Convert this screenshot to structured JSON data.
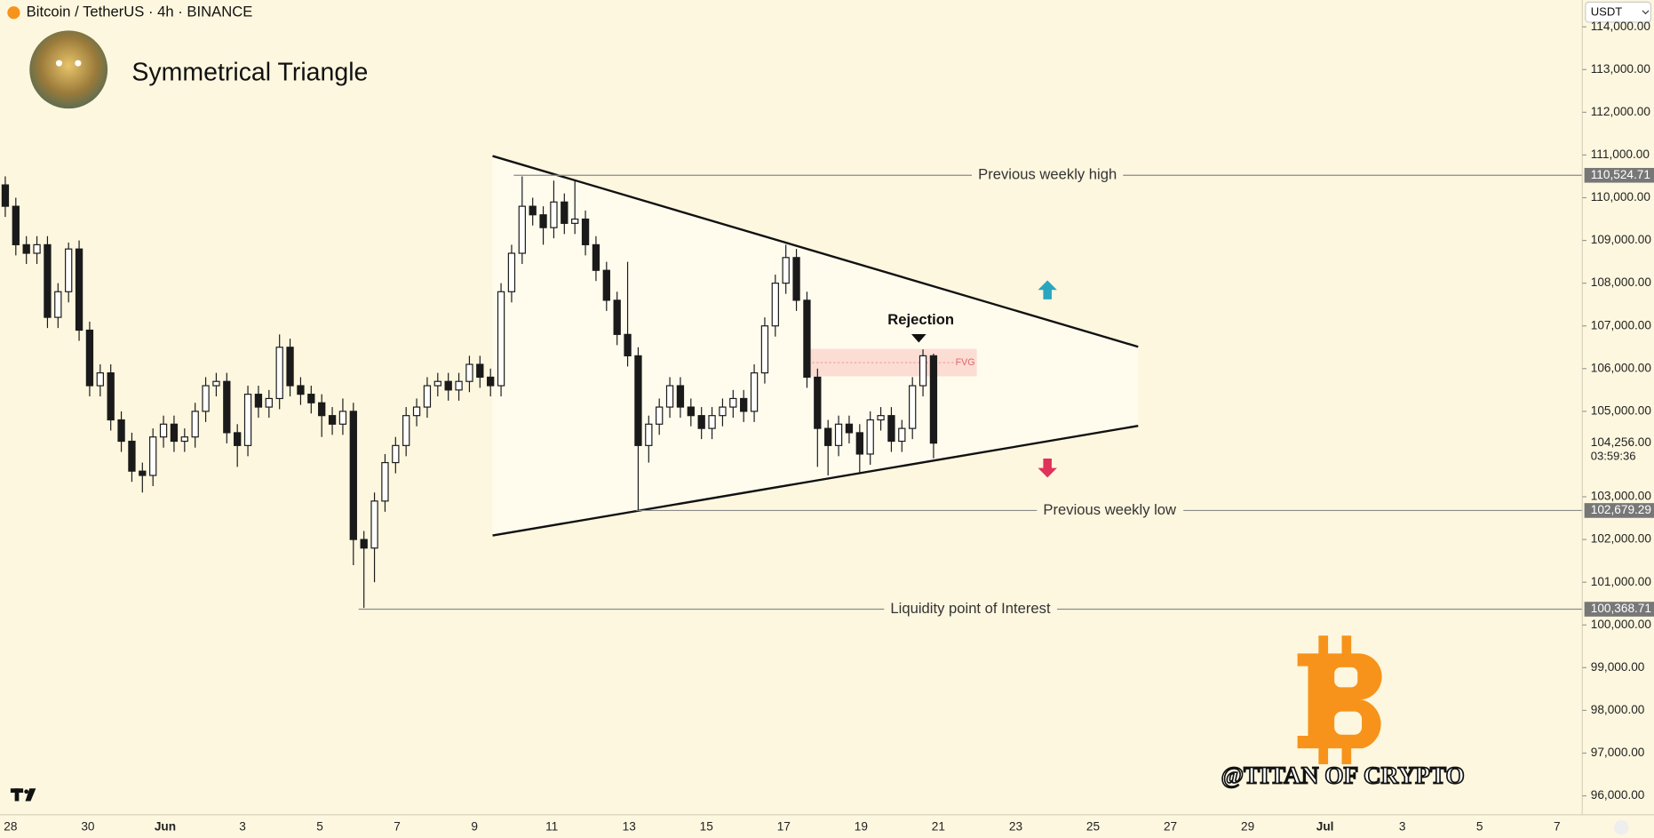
{
  "header": {
    "symbol": "Bitcoin / TetherUS · 4h · BINANCE",
    "title": "Symmetrical Triangle",
    "currency": "USDT"
  },
  "chart_data": {
    "type": "candlestick",
    "open": [
      110300,
      109800,
      108900,
      108700,
      108900,
      107200,
      107800,
      108800,
      106900,
      105600,
      105900,
      104800,
      104300,
      103600,
      103500,
      104400,
      104700,
      104300,
      104400,
      105000,
      105600,
      105700,
      104500,
      104200,
      105400,
      105100,
      105300,
      106500,
      105600,
      105400,
      105200,
      104900,
      104700,
      105000,
      102000,
      101800,
      102900,
      103800,
      104200,
      104900,
      105100,
      105600,
      105700,
      105500,
      105700,
      106100,
      105800,
      105600,
      107800,
      108700,
      109800,
      109600,
      109300,
      109900,
      109400,
      109500,
      108900,
      108300,
      107600,
      106800,
      106300,
      104200,
      104700,
      105100,
      105600,
      105100,
      104900,
      104600,
      104900,
      105100,
      105300,
      105000,
      105900,
      107000,
      108000,
      108600,
      107600,
      105800,
      104600,
      104200,
      104700,
      104500,
      104000,
      104800,
      104900,
      104300,
      104600,
      105600,
      106300
    ],
    "high": [
      110500,
      110000,
      109100,
      109100,
      109100,
      108000,
      108950,
      109000,
      107100,
      106100,
      106100,
      105000,
      104500,
      103800,
      104600,
      104900,
      104900,
      104600,
      105200,
      105800,
      105900,
      105900,
      104700,
      105600,
      105600,
      105500,
      106800,
      106700,
      105800,
      105600,
      105400,
      105100,
      105300,
      105200,
      102200,
      103100,
      104000,
      104400,
      105100,
      105300,
      105800,
      105900,
      105900,
      105900,
      106300,
      106300,
      106000,
      108000,
      108900,
      110500,
      110000,
      109800,
      110400,
      110100,
      110400,
      109700,
      109100,
      108500,
      107800,
      108500,
      106500,
      104900,
      105300,
      105800,
      105800,
      105300,
      105100,
      105100,
      105300,
      105500,
      105500,
      106100,
      107200,
      108200,
      108900,
      108800,
      107800,
      106000,
      104800,
      104900,
      104900,
      104700,
      105000,
      105100,
      105100,
      104800,
      105800,
      106450,
      106350
    ],
    "low": [
      109550,
      108650,
      108450,
      108450,
      106950,
      106950,
      107550,
      106650,
      105350,
      105350,
      104550,
      104050,
      103350,
      103100,
      103250,
      104150,
      104050,
      104050,
      104150,
      104750,
      105350,
      104250,
      103700,
      103950,
      104850,
      104850,
      105050,
      105350,
      105150,
      104950,
      104400,
      104450,
      104450,
      101400,
      100400,
      101000,
      102650,
      103550,
      103950,
      104650,
      104850,
      105350,
      105250,
      105250,
      105450,
      105550,
      105350,
      105350,
      107550,
      108450,
      109350,
      108900,
      109050,
      109150,
      109150,
      108650,
      108050,
      107350,
      106550,
      106050,
      102680,
      103800,
      104450,
      104850,
      104850,
      104650,
      104350,
      104350,
      104650,
      104850,
      104750,
      104750,
      105650,
      106750,
      107750,
      107350,
      105550,
      103700,
      103500,
      103950,
      104250,
      103550,
      103750,
      104550,
      104050,
      104050,
      104350,
      105350,
      103900
    ],
    "close": [
      109800,
      108900,
      108700,
      108900,
      107200,
      107800,
      108800,
      106900,
      105600,
      105900,
      104800,
      104300,
      103600,
      103500,
      104400,
      104700,
      104300,
      104400,
      105000,
      105600,
      105700,
      104500,
      104200,
      105400,
      105100,
      105300,
      106500,
      105600,
      105400,
      105200,
      104900,
      104700,
      105000,
      102000,
      101800,
      102900,
      103800,
      104200,
      104900,
      105100,
      105600,
      105700,
      105500,
      105700,
      106100,
      105800,
      105600,
      107800,
      108700,
      109800,
      109600,
      109300,
      109900,
      109400,
      109500,
      108900,
      108300,
      107600,
      106800,
      106300,
      104200,
      104700,
      105100,
      105600,
      105100,
      104900,
      104600,
      104900,
      105100,
      105300,
      105000,
      105900,
      107000,
      108000,
      108600,
      107600,
      105800,
      104600,
      104200,
      104700,
      104500,
      104000,
      104800,
      104900,
      104300,
      104600,
      105600,
      106300,
      104256
    ],
    "up_color": "#ffffff",
    "down_color": "#1a1a1a",
    "wick_color": "#1a1a1a",
    "ylim": [
      95556,
      114628
    ],
    "yticks": [
      {
        "value": 96000,
        "label": "96,000.00"
      },
      {
        "value": 97000,
        "label": "97,000.00"
      },
      {
        "value": 98000,
        "label": "98,000.00"
      },
      {
        "value": 99000,
        "label": "99,000.00"
      },
      {
        "value": 100000,
        "label": "100,000.00"
      },
      {
        "value": 101000,
        "label": "101,000.00"
      },
      {
        "value": 102000,
        "label": "102,000.00"
      },
      {
        "value": 103000,
        "label": "103,000.00"
      },
      {
        "value": 105000,
        "label": "105,000.00"
      },
      {
        "value": 106000,
        "label": "106,000.00"
      },
      {
        "value": 107000,
        "label": "107,000.00"
      },
      {
        "value": 108000,
        "label": "108,000.00"
      },
      {
        "value": 109000,
        "label": "109,000.00"
      },
      {
        "value": 110000,
        "label": "110,000.00"
      },
      {
        "value": 111000,
        "label": "111,000.00"
      },
      {
        "value": 112000,
        "label": "112,000.00"
      },
      {
        "value": 113000,
        "label": "113,000.00"
      },
      {
        "value": 114000,
        "label": "114,000.00"
      }
    ],
    "xtick_labels": [
      "28",
      "30",
      "Jun",
      "3",
      "5",
      "7",
      "9",
      "11",
      "13",
      "15",
      "17",
      "19",
      "21",
      "23",
      "25",
      "27",
      "29",
      "Jul",
      "3",
      "5",
      "7"
    ],
    "annotations": [
      {
        "text": "Previous weekly high",
        "value": 110524.71,
        "label": "110,524.71"
      },
      {
        "text": "Previous weekly low",
        "value": 102679.29,
        "label": "102,679.29"
      },
      {
        "text": "Liquidity point of Interest",
        "value": 100368.71,
        "label": "100,368.71"
      }
    ],
    "last_price": {
      "value": 104256,
      "label": "104,256.00",
      "countdown": "03:59:36"
    },
    "rejection": "Rejection",
    "fvg": "FVG",
    "watermark": "@TITAN OF CRYPTO"
  }
}
